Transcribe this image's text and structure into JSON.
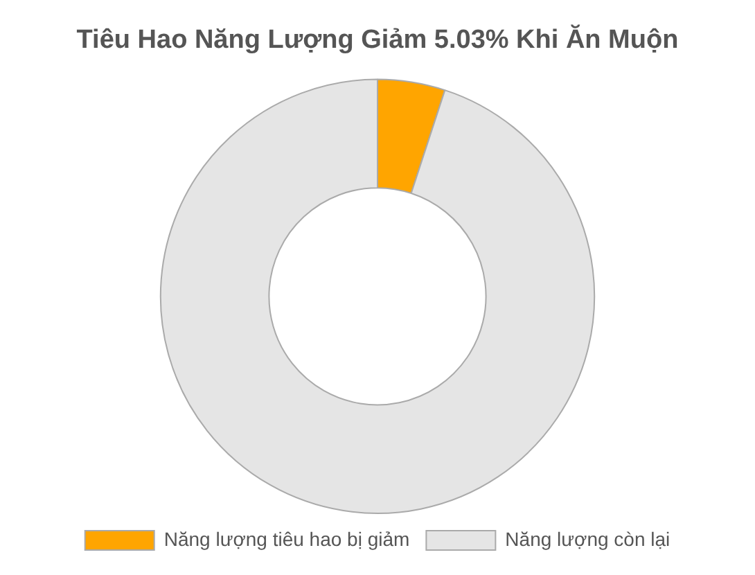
{
  "chart_data": {
    "type": "donut",
    "title": "Tiêu Hao Năng Lượng Giảm 5.03% Khi Ăn Muộn",
    "categories": [
      "Năng lượng tiêu hao bị giảm",
      "Năng lượng còn lại"
    ],
    "values": [
      5.03,
      94.97
    ],
    "colors": [
      "#ffa500",
      "#e5e5e5"
    ],
    "legend": "bottom"
  }
}
